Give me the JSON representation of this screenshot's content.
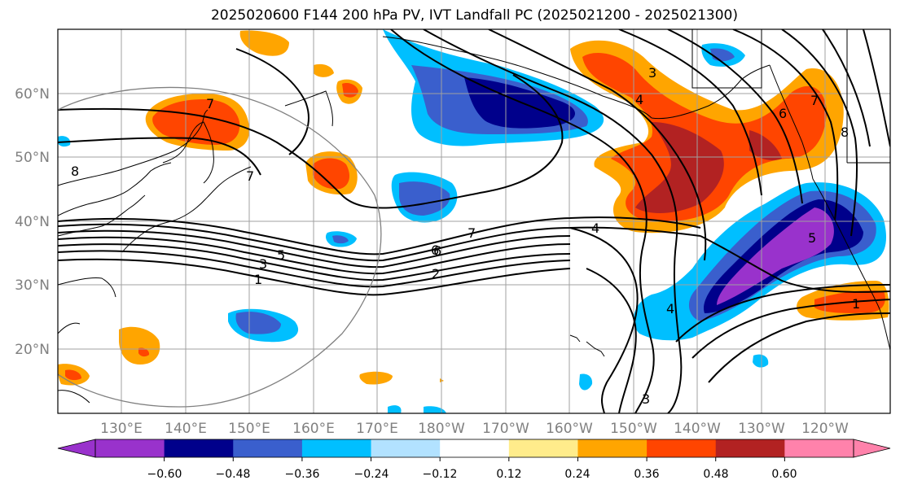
{
  "title": "2025020600 F144 200 hPa PV, IVT Landfall PC (2025021200 - 2025021300)",
  "lat_labels": [
    "60°N",
    "50°N",
    "40°N",
    "30°N",
    "20°N"
  ],
  "lon_labels": [
    "130°E",
    "140°E",
    "150°E",
    "160°E",
    "170°E",
    "180°W",
    "170°W",
    "160°W",
    "150°W",
    "140°W",
    "130°W",
    "120°W"
  ],
  "contour_labels": [
    "3",
    "4",
    "7",
    "6",
    "7",
    "8",
    "8",
    "7",
    "6",
    "5",
    "3",
    "1",
    "7",
    "4",
    "6",
    "2",
    "5",
    "4",
    "1",
    "3"
  ],
  "colorbar": {
    "tick_labels": [
      "−0.60",
      "−0.48",
      "−0.36",
      "−0.24",
      "−0.12",
      "0.12",
      "0.24",
      "0.36",
      "0.48",
      "0.60"
    ],
    "colors": [
      "#9932cc",
      "#00008b",
      "#3a5fcd",
      "#00bfff",
      "#b2e2ff",
      "#ffffff",
      "#ffec8b",
      "#ffa500",
      "#ff4500",
      "#b22222",
      "#ff82ab"
    ]
  }
}
